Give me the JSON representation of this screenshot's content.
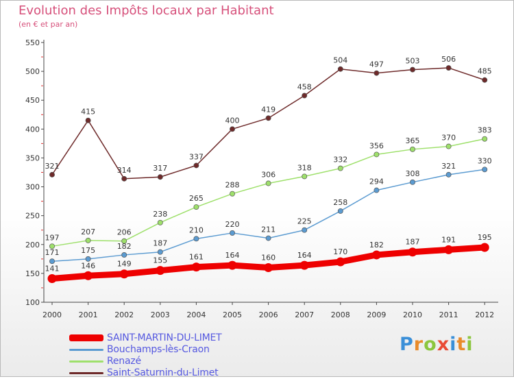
{
  "header": {
    "title": "Evolution des Impôts locaux par Habitant",
    "subtitle": "(en € et par an)"
  },
  "logo": {
    "letters": [
      "P",
      "r",
      "o",
      "x",
      "i",
      "t",
      "i"
    ],
    "colors": [
      "#3a8fd8",
      "#e98b2a",
      "#8cc63f",
      "#e94a35",
      "#3a8fd8",
      "#e98b2a",
      "#8cc63f"
    ]
  },
  "chart_data": {
    "type": "line",
    "x": [
      "2000",
      "2001",
      "2002",
      "2003",
      "2004",
      "2005",
      "2006",
      "2007",
      "2008",
      "2009",
      "2010",
      "2011",
      "2012"
    ],
    "ylim": [
      100,
      550
    ],
    "yticks": [
      "100",
      "150",
      "200",
      "250",
      "300",
      "350",
      "400",
      "450",
      "500",
      "550"
    ],
    "grid": false,
    "legend_position": "bottom-left",
    "series": [
      {
        "name": "SAINT-MARTIN-DU-LIMET",
        "color": "#ee0000",
        "values": [
          141,
          146,
          149,
          155,
          161,
          164,
          160,
          164,
          170,
          182,
          187,
          191,
          195
        ]
      },
      {
        "name": "Bouchamps-lès-Craon",
        "color": "#5b9bd1",
        "values": [
          171,
          175,
          182,
          187,
          210,
          220,
          211,
          225,
          258,
          294,
          308,
          321,
          330
        ]
      },
      {
        "name": "Renazé",
        "color": "#9ee06b",
        "values": [
          197,
          207,
          206,
          238,
          265,
          288,
          306,
          318,
          332,
          356,
          365,
          370,
          383
        ]
      },
      {
        "name": "Saint-Saturnin-du-Limet",
        "color": "#6e2a2a",
        "values": [
          321,
          415,
          314,
          317,
          337,
          400,
          419,
          458,
          504,
          497,
          503,
          506,
          485
        ]
      }
    ]
  }
}
